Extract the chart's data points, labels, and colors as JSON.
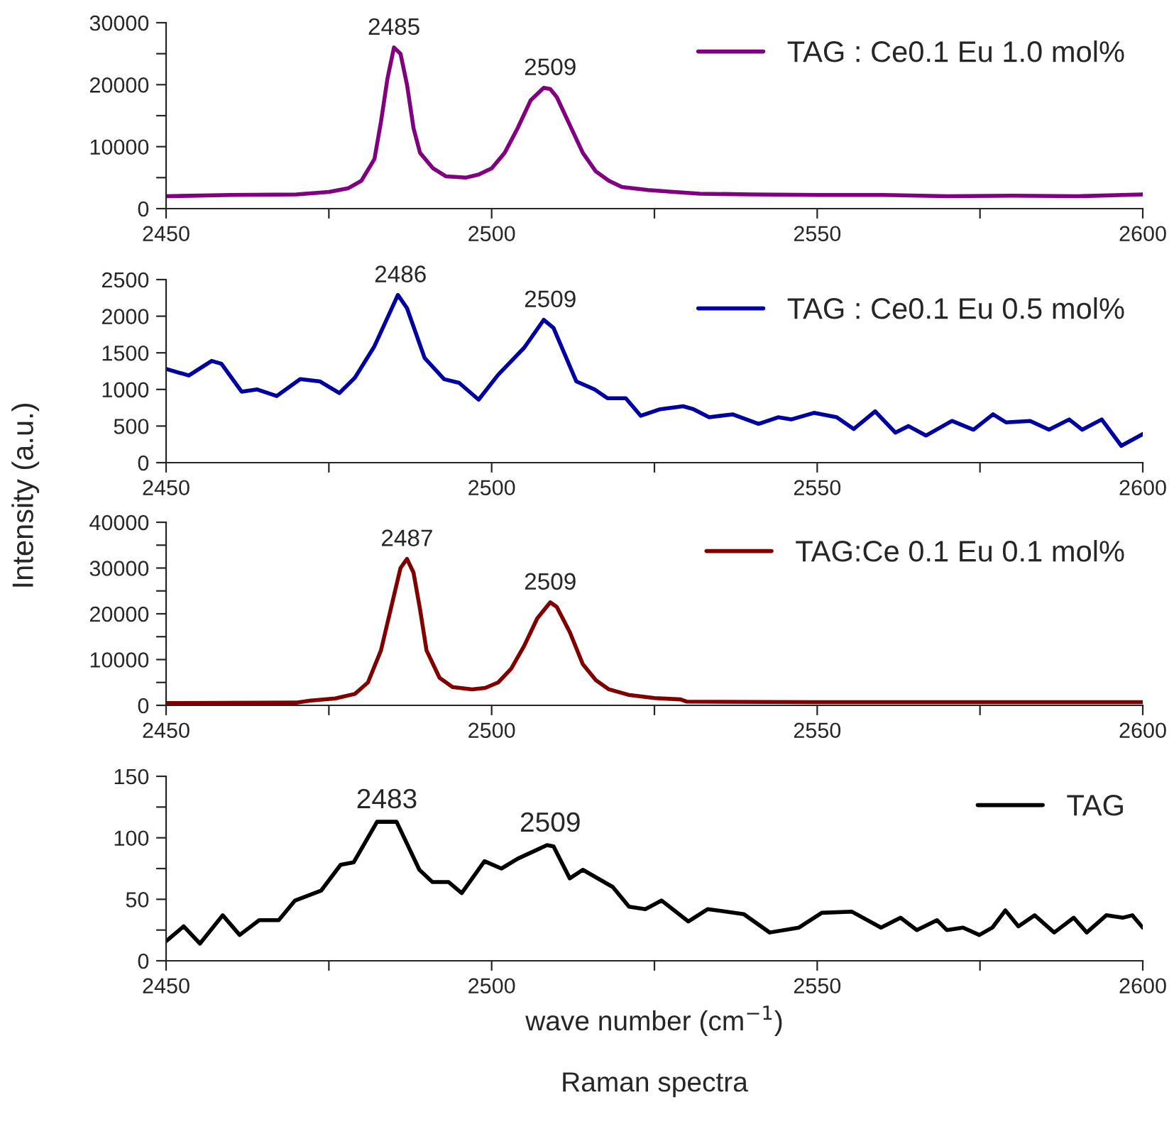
{
  "chart_data": [
    {
      "type": "line",
      "xlim": [
        2450,
        2600
      ],
      "xticks": [
        2450,
        {
          "value": 2475,
          "label": null
        },
        2500,
        {
          "value": 2525,
          "label": null
        },
        2550,
        {
          "value": 2575,
          "label": null
        },
        2600
      ],
      "ylim": [
        0,
        30000
      ],
      "yticks": [
        0,
        {
          "value": 5000,
          "label": null
        },
        10000,
        {
          "value": 15000,
          "label": null
        },
        20000,
        {
          "value": 25000,
          "label": null
        },
        30000
      ],
      "legend": "top right",
      "grid": false,
      "series": [
        {
          "name": "TAG : Ce0.1 Eu 1.0 mol%",
          "color": "#800080",
          "x": [
            2450,
            2460,
            2470,
            2475,
            2478,
            2480,
            2482,
            2483,
            2484,
            2485,
            2486,
            2487,
            2488,
            2489,
            2491,
            2493,
            2496,
            2498,
            2500,
            2502,
            2504,
            2506,
            2508,
            2509,
            2510,
            2512,
            2514,
            2516,
            2518,
            2520,
            2524,
            2528,
            2532,
            2540,
            2550,
            2560,
            2570,
            2580,
            2590,
            2600
          ],
          "values": [
            2000,
            2200,
            2300,
            2700,
            3300,
            4500,
            8000,
            14000,
            21000,
            26000,
            25000,
            20000,
            13000,
            9000,
            6500,
            5200,
            5000,
            5500,
            6500,
            9000,
            13000,
            17500,
            19500,
            19300,
            18000,
            13500,
            9000,
            6000,
            4500,
            3500,
            3000,
            2700,
            2400,
            2300,
            2200,
            2200,
            2000,
            2100,
            2000,
            2300
          ]
        }
      ],
      "annotations": [
        {
          "text": "2485",
          "x": 2485,
          "y": 26000
        },
        {
          "text": "2509",
          "x": 2509,
          "y": 19500
        }
      ]
    },
    {
      "type": "line",
      "xlim": [
        2450,
        2600
      ],
      "xticks": [
        2450,
        {
          "value": 2475,
          "label": null
        },
        2500,
        {
          "value": 2525,
          "label": null
        },
        2550,
        {
          "value": 2575,
          "label": null
        },
        2600
      ],
      "ylim": [
        0,
        2500
      ],
      "yticks": [
        0,
        500,
        1000,
        1500,
        2000,
        2500
      ],
      "ylabel": "Intensity (a.u.)",
      "legend": "top right",
      "grid": false,
      "series": [
        {
          "name": "TAG : Ce0.1 Eu 0.5 mol%",
          "color": "#0000a0",
          "x": [
            2450,
            2453.5,
            2457,
            2458.5,
            2461.6,
            2464,
            2467,
            2470.6,
            2473.6,
            2476.6,
            2479,
            2482,
            2485.6,
            2487,
            2489.7,
            2492.7,
            2495,
            2498,
            2501,
            2505,
            2508,
            2509.5,
            2513,
            2515.8,
            2517.8,
            2520.6,
            2522.9,
            2525.9,
            2529.4,
            2531,
            2533.4,
            2537,
            2541,
            2544,
            2546,
            2549.5,
            2553,
            2555.6,
            2558.9,
            2562,
            2564,
            2566.7,
            2570.7,
            2574,
            2577,
            2579,
            2582.7,
            2585.6,
            2588.7,
            2590.7,
            2593.7,
            2596.7,
            2600
          ],
          "values": [
            1280,
            1190,
            1390,
            1350,
            970,
            1000,
            910,
            1140,
            1110,
            950,
            1160,
            1590,
            2290,
            2110,
            1430,
            1140,
            1090,
            860,
            1200,
            1570,
            1950,
            1840,
            1110,
            1000,
            880,
            880,
            640,
            730,
            770,
            730,
            620,
            660,
            530,
            620,
            590,
            680,
            620,
            460,
            700,
            410,
            500,
            370,
            570,
            450,
            660,
            550,
            570,
            450,
            590,
            450,
            590,
            230,
            390
          ]
        }
      ],
      "annotations": [
        {
          "text": "2486",
          "x": 2486,
          "y": 2290
        },
        {
          "text": "2509",
          "x": 2509,
          "y": 1950
        }
      ]
    },
    {
      "type": "line",
      "xlim": [
        2450,
        2600
      ],
      "xticks": [
        2450,
        {
          "value": 2475,
          "label": null
        },
        2500,
        {
          "value": 2525,
          "label": null
        },
        2550,
        {
          "value": 2575,
          "label": null
        },
        2600
      ],
      "ylim": [
        0,
        40000
      ],
      "yticks": [
        0,
        {
          "value": 5000,
          "label": null
        },
        10000,
        {
          "value": 15000,
          "label": null
        },
        20000,
        {
          "value": 25000,
          "label": null
        },
        30000,
        {
          "value": 35000,
          "label": null
        },
        40000
      ],
      "legend": "top right",
      "grid": false,
      "series": [
        {
          "name": "TAG:Ce 0.1 Eu 0.1 mol%",
          "color": "#800000",
          "x": [
            2450,
            2470,
            2472,
            2476,
            2479,
            2481,
            2483,
            2485,
            2486,
            2487,
            2488,
            2489,
            2490,
            2492,
            2494,
            2497,
            2499,
            2501,
            2503,
            2505,
            2507,
            2509,
            2510,
            2512,
            2514,
            2516,
            2518,
            2521,
            2525,
            2529,
            2530,
            2550,
            2575,
            2600
          ],
          "values": [
            500,
            600,
            1000,
            1500,
            2500,
            5000,
            12000,
            24000,
            30000,
            32000,
            29000,
            21000,
            12000,
            6000,
            4000,
            3500,
            3800,
            5000,
            8000,
            13000,
            19000,
            22500,
            21500,
            16000,
            9000,
            5500,
            3500,
            2300,
            1600,
            1300,
            800,
            700,
            700,
            700
          ]
        }
      ],
      "annotations": [
        {
          "text": "2487",
          "x": 2487,
          "y": 32000
        },
        {
          "text": "2509",
          "x": 2509,
          "y": 22500
        }
      ]
    },
    {
      "type": "line",
      "xlim": [
        2450,
        2600
      ],
      "xticks": [
        2450,
        {
          "value": 2475,
          "label": null
        },
        2500,
        {
          "value": 2525,
          "label": null
        },
        2550,
        {
          "value": 2575,
          "label": null
        },
        2600
      ],
      "ylim": [
        0,
        150
      ],
      "yticks": [
        0,
        {
          "value": 25,
          "label": null
        },
        50,
        {
          "value": 75,
          "label": null
        },
        100,
        {
          "value": 125,
          "label": null
        },
        150
      ],
      "xlabel": "wave number (cm$^{−1}$)",
      "legend": "top right",
      "grid": false,
      "series": [
        {
          "name": "TAG",
          "color": "#000000",
          "x": [
            2450,
            2452.7,
            2455.2,
            2458.7,
            2461.3,
            2464.3,
            2467.3,
            2469.8,
            2473.8,
            2476.8,
            2478.8,
            2482.4,
            2485.4,
            2488.9,
            2490.9,
            2493.4,
            2495.4,
            2498.9,
            2501.5,
            2504,
            2508.5,
            2509.5,
            2512,
            2514,
            2518.6,
            2521.1,
            2523.6,
            2526.1,
            2530.2,
            2533.2,
            2538.7,
            2542.7,
            2547.2,
            2550.7,
            2555.3,
            2559.8,
            2562.8,
            2565.3,
            2568.4,
            2569.9,
            2572.4,
            2574.9,
            2576.9,
            2578.9,
            2580.9,
            2583.4,
            2586.4,
            2589.4,
            2591.4,
            2594.4,
            2596.9,
            2598.4,
            2600
          ],
          "values": [
            16,
            28,
            14,
            37,
            21,
            33,
            33,
            49,
            57,
            78,
            80,
            113,
            113,
            74,
            64,
            64,
            55,
            81,
            75,
            83,
            94,
            93,
            67,
            74,
            60,
            44,
            42,
            49,
            32,
            42,
            38,
            23,
            27,
            39,
            40,
            27,
            35,
            25,
            33,
            25,
            27,
            21,
            27,
            41,
            28,
            37,
            23,
            35,
            23,
            37,
            35,
            37,
            27
          ]
        }
      ],
      "annotations": [
        {
          "text": "2483",
          "x": 2483.9,
          "y": 113
        },
        {
          "text": "2509",
          "x": 2509,
          "y": 94
        },
        "Raman spectra"
      ]
    }
  ]
}
